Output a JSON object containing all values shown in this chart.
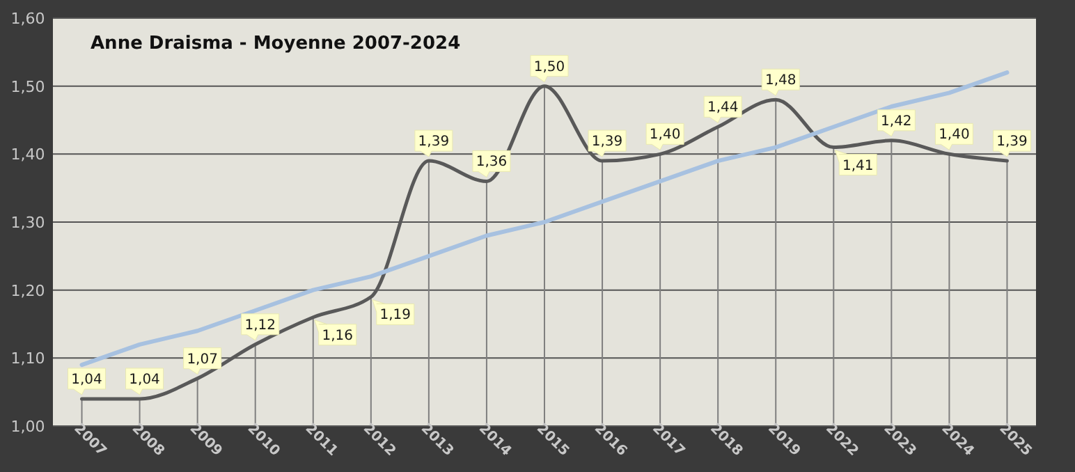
{
  "chart_data": {
    "type": "line",
    "title": "Anne Draisma - Moyenne 2007-2024",
    "categories": [
      "2007",
      "2008",
      "2009",
      "2010",
      "2011",
      "2012",
      "2013",
      "2014",
      "2015",
      "2016",
      "2017",
      "2018",
      "2019",
      "2022",
      "2023",
      "2024",
      "2025"
    ],
    "series": [
      {
        "type": "line",
        "color": "#595959",
        "values": [
          1.04,
          1.04,
          1.07,
          1.12,
          1.16,
          1.19,
          1.39,
          1.36,
          1.5,
          1.39,
          1.4,
          1.44,
          1.48,
          1.41,
          1.42,
          1.4,
          1.39
        ],
        "value_labels": [
          "1,04",
          "1,04",
          "1,07",
          "1,12",
          "1,16",
          "1,19",
          "1,39",
          "1,36",
          "1,50",
          "1,39",
          "1,40",
          "1,44",
          "1,48",
          "1,41",
          "1,42",
          "1,40",
          "1,39"
        ]
      },
      {
        "type": "line",
        "color": "#a7c1e0",
        "values": [
          1.09,
          1.12,
          1.14,
          1.17,
          1.2,
          1.22,
          1.25,
          1.28,
          1.3,
          1.33,
          1.36,
          1.39,
          1.41,
          1.44,
          1.47,
          1.49,
          1.52
        ]
      }
    ],
    "ylim": [
      1.0,
      1.6
    ],
    "yticks": [
      {
        "value": 1.0,
        "label": "1,00"
      },
      {
        "value": 1.1,
        "label": "1,10"
      },
      {
        "value": 1.2,
        "label": "1,20"
      },
      {
        "value": 1.3,
        "label": "1,30"
      },
      {
        "value": 1.4,
        "label": "1,40"
      },
      {
        "value": 1.5,
        "label": "1,50"
      },
      {
        "value": 1.6,
        "label": "1,60"
      }
    ],
    "grid": true,
    "marker": "none",
    "line_style": "solid",
    "legend": false
  }
}
